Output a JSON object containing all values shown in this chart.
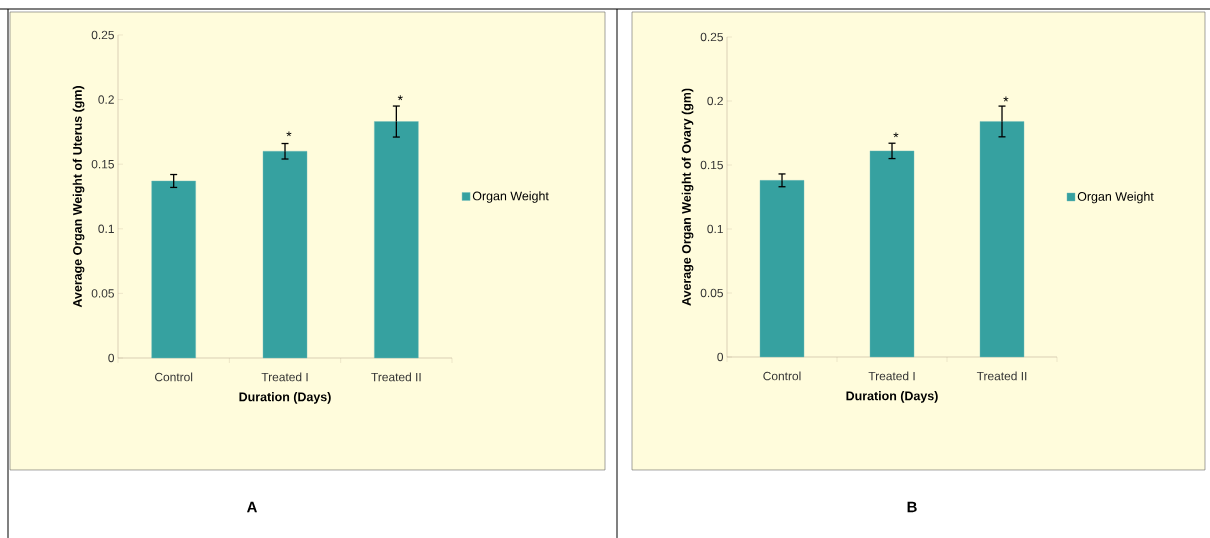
{
  "chart_data": [
    {
      "type": "bar",
      "categories": [
        "Control",
        "Treated I",
        "Treated II"
      ],
      "series": [
        {
          "name": "Organ Weight",
          "color": "#36a1a0",
          "values": [
            0.137,
            0.16,
            0.183
          ],
          "errors": [
            0.005,
            0.006,
            0.012
          ]
        }
      ],
      "xlabel": "Duration (Days)",
      "ylabel": "Average Organ Weight of Uterus (gm)",
      "ylim": [
        0,
        0.25
      ],
      "yticks": [
        0,
        0.05,
        0.1,
        0.15,
        0.2,
        0.25
      ],
      "legend": "right",
      "grid": false,
      "annotations": [
        {
          "text": "*",
          "x": "Treated I",
          "y": 0.167
        },
        {
          "text": "*",
          "x": "Treated II",
          "y": 0.195
        },
        "A"
      ]
    },
    {
      "type": "bar",
      "categories": [
        "Control",
        "Treated I",
        "Treated II"
      ],
      "series": [
        {
          "name": "Organ Weight",
          "color": "#36a1a0",
          "values": [
            0.138,
            0.161,
            0.184
          ],
          "errors": [
            0.005,
            0.006,
            0.012
          ]
        }
      ],
      "xlabel": "Duration (Days)",
      "ylabel": "Average Organ Weight of Ovary (gm)",
      "ylim": [
        0,
        0.25
      ],
      "yticks": [
        0,
        0.05,
        0.1,
        0.15,
        0.2,
        0.25
      ],
      "legend": "right",
      "grid": false,
      "annotations": [
        {
          "text": "*",
          "x": "Treated I",
          "y": 0.167
        },
        {
          "text": "*",
          "x": "Treated II",
          "y": 0.195
        },
        "B"
      ]
    }
  ]
}
